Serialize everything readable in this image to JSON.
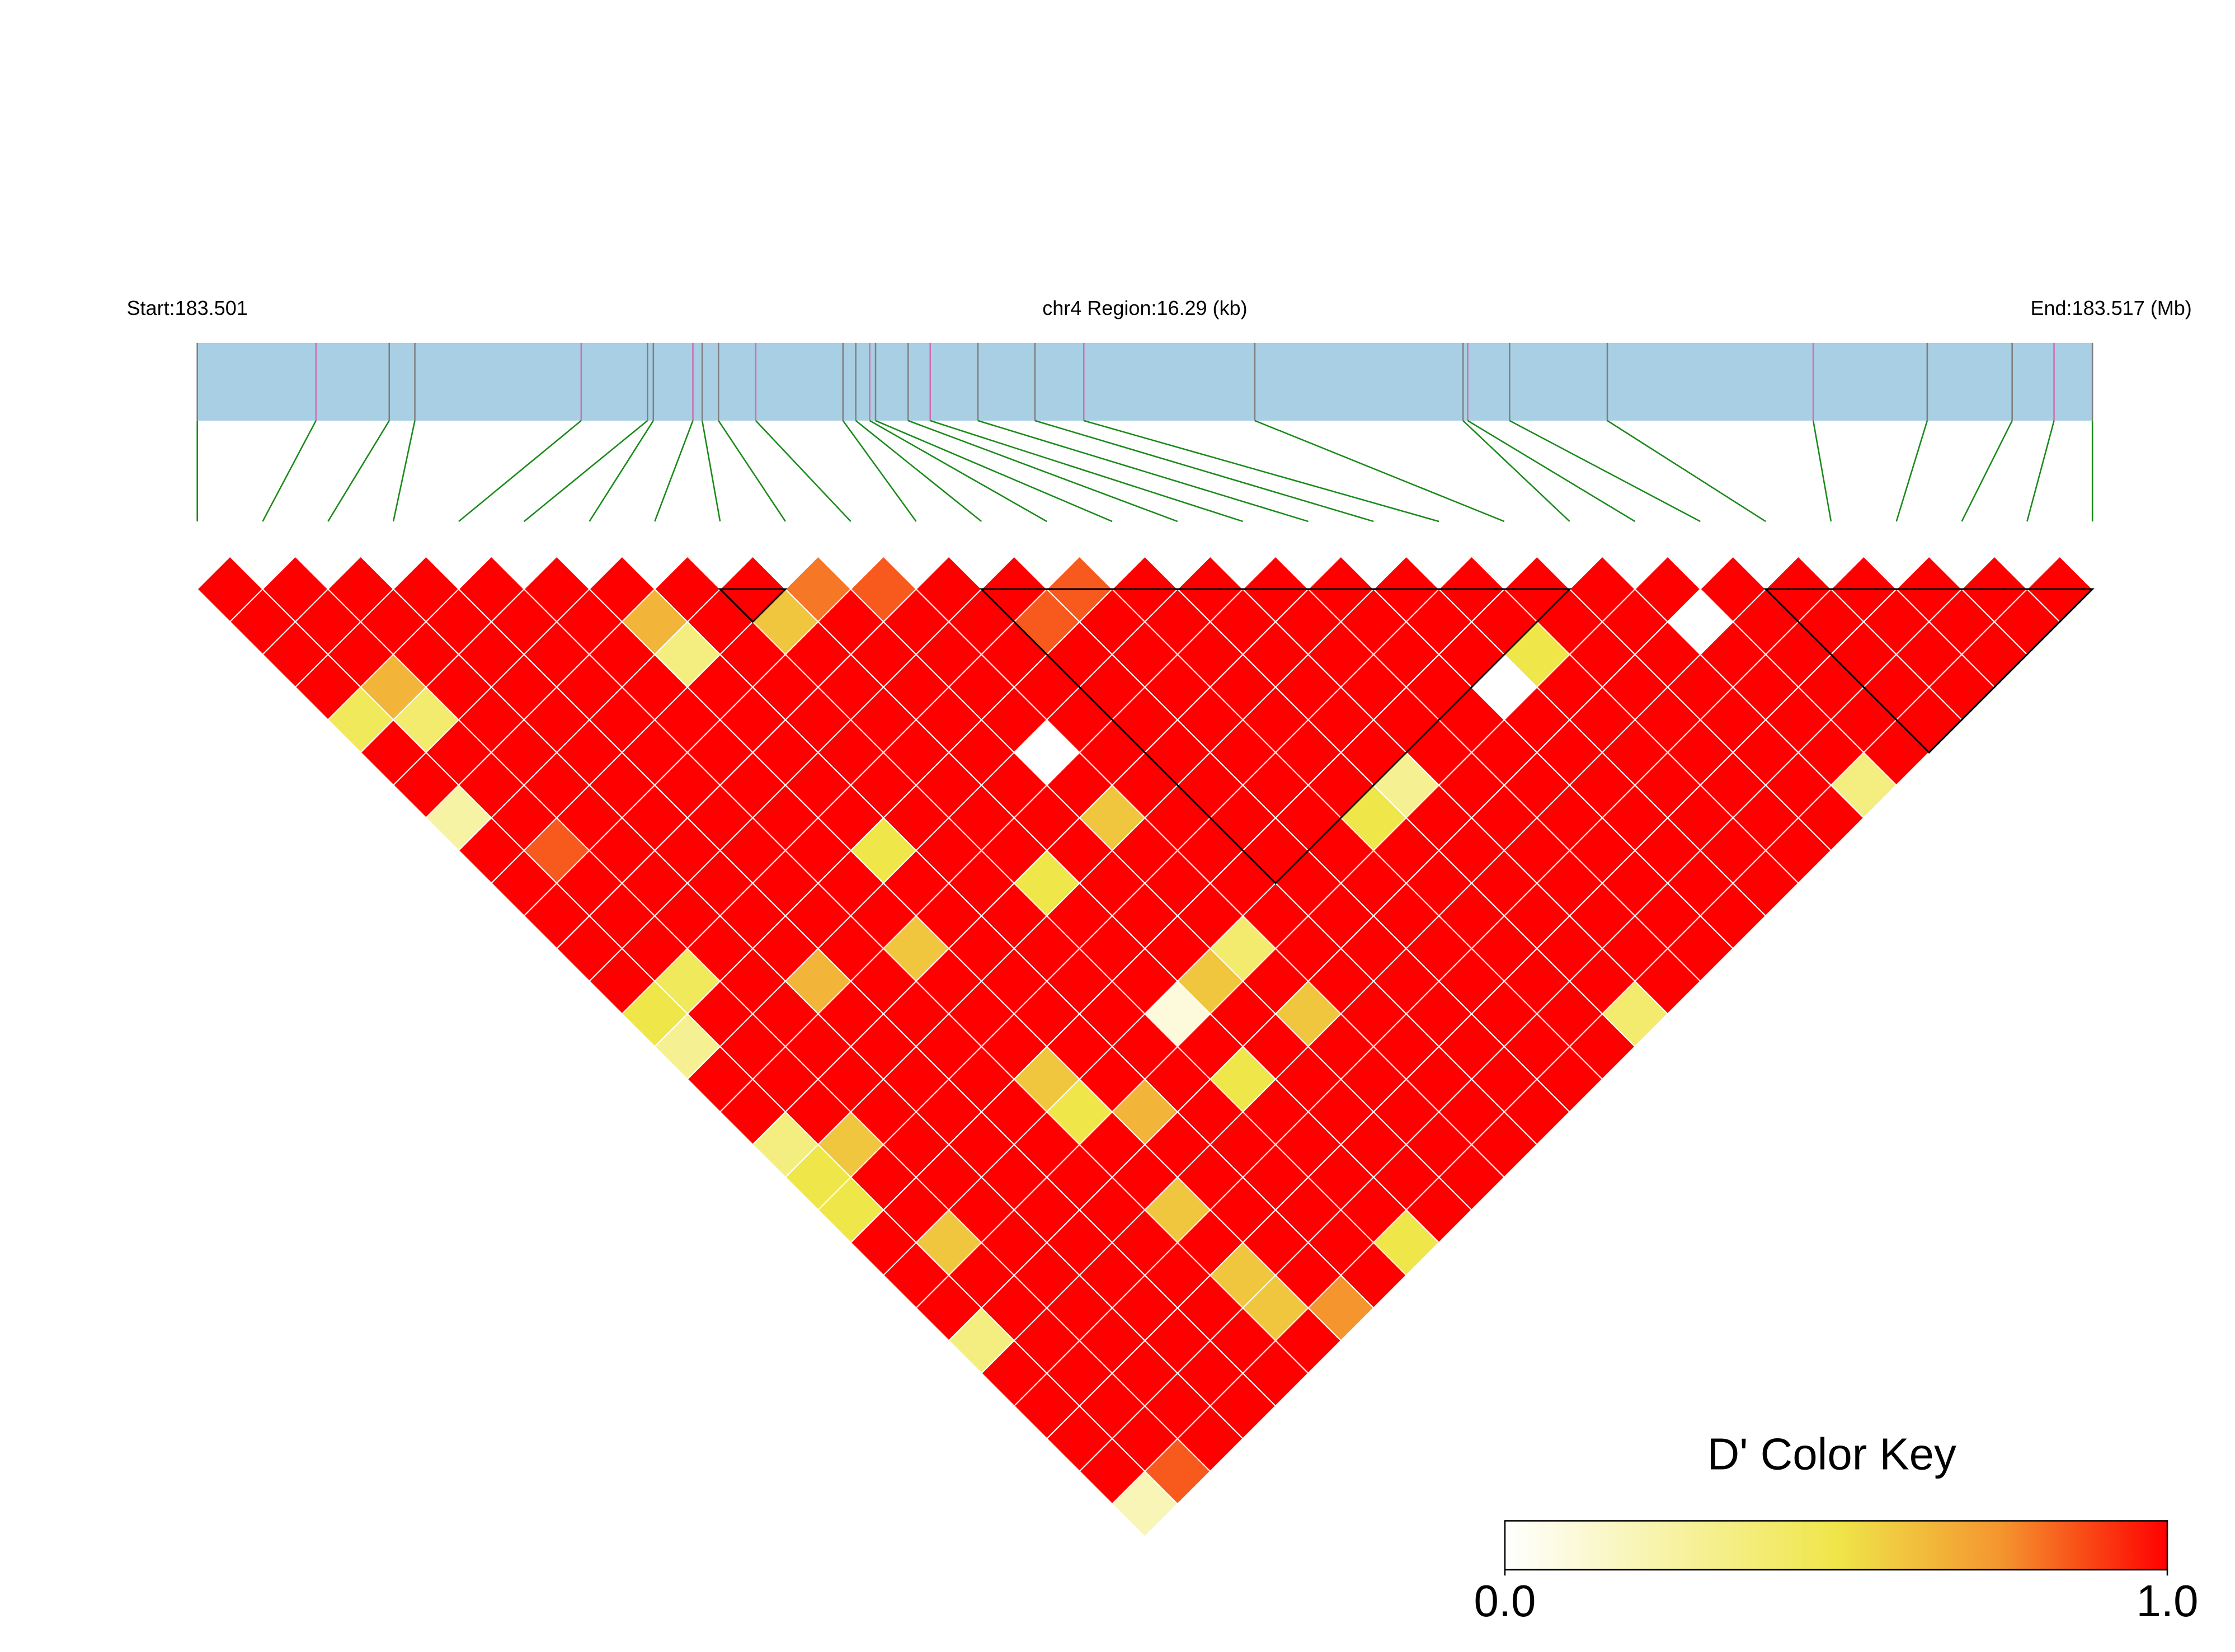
{
  "chart_data": {
    "type": "ld-heatmap",
    "start_label": "Start:183.501",
    "region_label": "chr4 Region:16.29 (kb)",
    "end_label": "End:183.517 (Mb)",
    "xlim": [
      0,
      16.29
    ],
    "snp_positions": [
      0,
      1.02,
      1.65,
      1.87,
      3.3,
      3.87,
      3.92,
      4.26,
      4.34,
      4.48,
      4.8,
      5.55,
      5.66,
      5.78,
      5.83,
      6.11,
      6.3,
      6.71,
      7.2,
      7.62,
      9.09,
      10.88,
      10.92,
      11.28,
      12.12,
      13.89,
      14.87,
      15.6,
      15.96,
      16.29
    ],
    "values": [
      [
        1,
        1,
        1,
        1,
        0.45,
        1,
        1,
        0.25,
        1,
        1,
        1,
        1,
        1,
        0.5,
        0.3,
        1,
        1,
        0.35,
        0.5,
        0.5,
        1,
        1,
        1,
        0.35,
        1,
        1,
        1,
        1,
        0.2
      ],
      [
        1,
        1,
        1,
        0.65,
        0.4,
        1,
        1,
        1,
        0.85,
        1,
        1,
        1,
        0.45,
        1,
        1,
        1,
        1,
        0.6,
        1,
        1,
        0.6,
        1,
        1,
        1,
        1,
        1,
        1,
        0.85
      ],
      [
        1,
        1,
        1,
        1,
        1,
        1,
        1,
        1,
        1,
        1,
        1,
        1,
        1,
        1,
        1,
        1,
        1,
        1,
        1,
        1,
        1,
        1,
        1,
        1,
        1,
        1,
        1
      ],
      [
        1,
        1,
        1,
        1,
        1,
        1,
        1,
        1,
        1,
        1,
        1,
        1,
        0.65,
        1,
        1,
        1,
        1,
        1,
        1,
        1,
        1,
        1,
        1,
        1,
        1,
        1
      ],
      [
        1,
        1,
        1,
        1,
        1,
        1,
        1,
        1,
        1,
        1,
        1,
        1,
        1,
        1,
        1,
        1,
        1,
        1,
        1,
        1,
        1,
        1,
        1,
        1,
        1
      ],
      [
        1,
        1,
        1,
        1,
        1,
        1,
        1,
        1,
        1,
        1,
        1,
        0.6,
        1,
        1,
        1,
        0.6,
        0.5,
        1,
        1,
        0.6,
        1,
        0.6,
        0.6,
        1
      ],
      [
        1,
        0.65,
        0.35,
        1,
        1,
        1,
        1,
        1,
        0.5,
        1,
        1,
        1,
        1,
        1,
        1,
        1,
        0.65,
        1,
        1,
        1,
        1,
        1,
        0.75
      ],
      [
        1,
        1,
        1,
        1,
        1,
        1,
        1,
        1,
        1,
        1,
        1,
        1,
        1,
        1,
        1,
        1,
        1,
        1,
        1,
        1,
        1,
        1
      ],
      [
        1,
        0.6,
        1,
        1,
        1,
        1,
        1,
        1,
        1,
        0.5,
        1,
        1,
        1,
        0.1,
        1,
        0.5,
        1,
        1,
        1,
        1,
        0.5
      ],
      [
        0.8,
        1,
        1,
        1,
        1,
        1,
        1,
        1,
        1,
        1,
        1,
        1,
        0.6,
        1,
        1,
        1,
        1,
        1,
        1,
        1
      ],
      [
        0.85,
        1,
        1,
        1,
        1,
        0,
        1,
        0.6,
        1,
        1,
        1,
        0.4,
        1,
        0.6,
        1,
        1,
        1,
        1,
        1
      ],
      [
        1,
        1,
        1,
        1,
        1,
        1,
        1,
        1,
        1,
        1,
        1,
        1,
        1,
        1,
        1,
        1,
        1,
        1
      ],
      [
        1,
        0.85,
        1,
        1,
        1,
        1,
        1,
        1,
        1,
        1,
        1,
        1,
        1,
        1,
        1,
        1,
        1
      ],
      [
        0.85,
        1,
        1,
        1,
        1,
        1,
        1,
        1,
        1,
        1,
        1,
        1,
        1,
        1,
        1,
        1
      ],
      [
        1,
        1,
        1,
        1,
        1,
        1,
        1,
        0.5,
        1,
        1,
        1,
        1,
        1,
        1,
        1
      ],
      [
        1,
        1,
        1,
        1,
        1,
        1,
        0.3,
        1,
        1,
        1,
        1,
        1,
        1,
        0.4
      ],
      [
        1,
        1,
        1,
        1,
        1,
        1,
        1,
        1,
        1,
        1,
        1,
        1,
        1
      ],
      [
        1,
        1,
        1,
        1,
        1,
        1,
        1,
        1,
        1,
        1,
        1,
        1
      ],
      [
        1,
        1,
        1,
        0,
        1,
        1,
        1,
        1,
        1,
        1,
        1
      ],
      [
        1,
        1,
        0.5,
        1,
        1,
        1,
        1,
        1,
        1,
        1
      ],
      [
        1,
        1,
        1,
        1,
        1,
        1,
        1,
        1,
        1
      ],
      [
        1,
        1,
        1,
        1,
        1,
        1,
        1,
        1
      ],
      [
        1,
        0,
        1,
        1,
        1,
        1,
        0.35
      ],
      [
        1,
        1,
        1,
        1,
        1,
        1
      ],
      [
        1,
        1,
        1,
        1,
        1
      ],
      [
        1,
        1,
        1,
        1
      ],
      [
        1,
        1,
        1
      ],
      [
        1,
        1
      ],
      [
        1
      ]
    ],
    "blocks": [
      [
        8,
        9
      ],
      [
        12,
        21
      ],
      [
        24,
        29
      ]
    ],
    "colorbar": {
      "title": "D' Color Key",
      "range": [
        0,
        1
      ],
      "ticks": [
        {
          "value": 0,
          "label": "0.0"
        },
        {
          "value": 1,
          "label": "1.0"
        }
      ]
    }
  }
}
